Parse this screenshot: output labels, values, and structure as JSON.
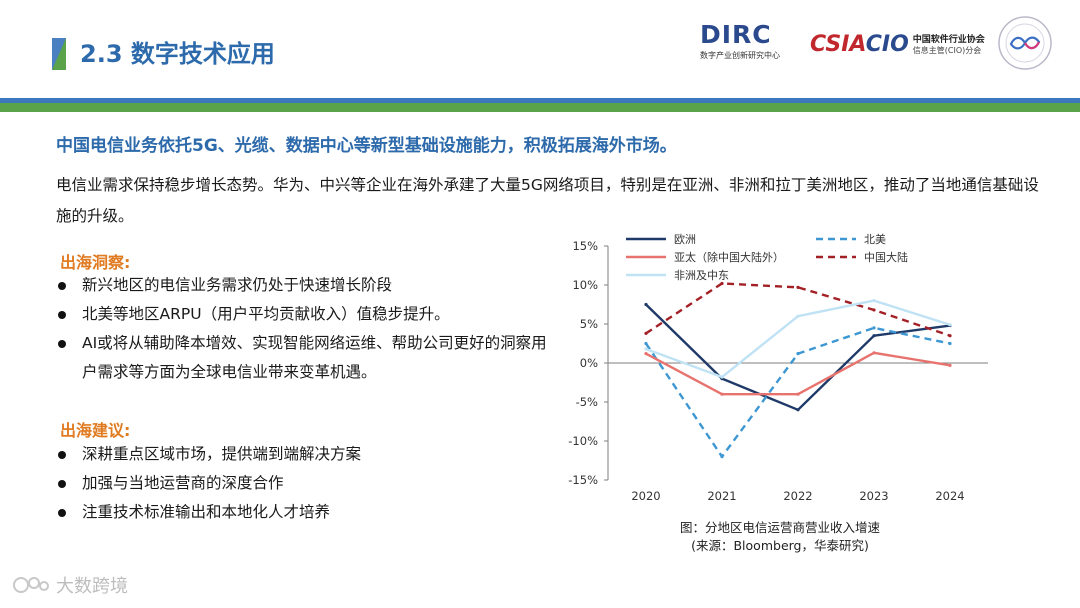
{
  "header": {
    "section_title": "2.3 数字技术应用",
    "band_colors": [
      "#3b78bd",
      "#5aa34b"
    ]
  },
  "logos": {
    "dirc": {
      "name": "DIRC",
      "subtitle": "数字产业创新研究中心"
    },
    "csia": {
      "mark_left": "CSIA",
      "mark_right": "CIO",
      "line1": "中国软件行业协会",
      "line2": "信息主管(CIO)分会"
    }
  },
  "content": {
    "headline": "中国电信业务依托5G、光缆、数据中心等新型基础设施能力，积极拓展海外市场。",
    "intro": "电信业需求保持稳步增长态势。华为、中兴等企业在海外承建了大量5G网络项目，特别是在亚洲、非洲和拉丁美洲地区，推动了当地通信基础设施的升级。",
    "insight_heading": "出海洞察:",
    "insights": [
      "新兴地区的电信业务需求仍处于快速增长阶段",
      "北美等地区ARPU（用户平均贡献收入）值稳步提升。",
      "AI或将从辅助降本增效、实现智能网络运维、帮助公司更好的洞察用户需求等方面为全球电信业带来变革机遇。"
    ],
    "advice_heading": "出海建议:",
    "advices": [
      "深耕重点区域市场，提供端到端解决方案",
      "加强与当地运营商的深度合作",
      "注重技术标准输出和本地化人才培养"
    ]
  },
  "caption": {
    "line1": "图：分地区电信运营商营业收入增速",
    "line2": "(来源：Bloomberg，华泰研究)"
  },
  "watermark": "大数跨境",
  "chart_data": {
    "type": "line",
    "x": [
      "2020",
      "2021",
      "2022",
      "2023",
      "2024"
    ],
    "ylim": [
      -15,
      15
    ],
    "yticks": [
      15,
      10,
      5,
      0,
      -5,
      -10,
      -15
    ],
    "ytick_labels": [
      "15%",
      "10%",
      "5%",
      "0%",
      "-5%",
      "-10%",
      "-15%"
    ],
    "legend_position": "top",
    "series": [
      {
        "name": "欧洲",
        "color": "#1f3a68",
        "dash": "solid",
        "values": [
          7.5,
          -2.0,
          -6.0,
          3.5,
          4.8
        ]
      },
      {
        "name": "北美",
        "color": "#3d97d3",
        "dash": "dashed",
        "values": [
          2.5,
          -12.0,
          1.2,
          4.5,
          2.5
        ]
      },
      {
        "name": "亚太（除中国大陆外）",
        "color": "#e8736e",
        "dash": "solid",
        "values": [
          1.2,
          -4.0,
          -4.0,
          1.3,
          -0.3
        ]
      },
      {
        "name": "中国大陆",
        "color": "#a32026",
        "dash": "dashed",
        "values": [
          3.8,
          10.2,
          9.7,
          6.8,
          3.5
        ]
      },
      {
        "name": "非洲及中东",
        "color": "#bfe2f4",
        "dash": "solid",
        "values": [
          1.8,
          -1.8,
          6.0,
          8.0,
          4.9
        ]
      }
    ]
  }
}
